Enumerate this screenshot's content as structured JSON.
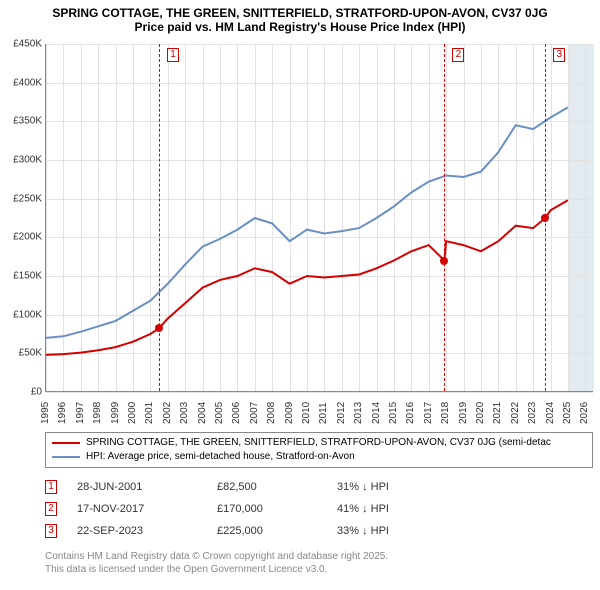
{
  "title": {
    "line1": "SPRING COTTAGE, THE GREEN, SNITTERFIELD, STRATFORD-UPON-AVON, CV37 0JG",
    "line2": "Price paid vs. HM Land Registry's House Price Index (HPI)",
    "fontsize": 12,
    "fontweight": "bold",
    "color": "#000000"
  },
  "chart": {
    "type": "line",
    "background_color": "#ffffff",
    "shaded_future_band_color": "#e3eaf0",
    "grid_color": "#e2e2e2",
    "axis_color": "#888888",
    "xlim": [
      1995,
      2026.5
    ],
    "ylim": [
      0,
      450000
    ],
    "ytick_step": 50000,
    "y_ticks": [
      {
        "v": 0,
        "label": "£0"
      },
      {
        "v": 50000,
        "label": "£50K"
      },
      {
        "v": 100000,
        "label": "£100K"
      },
      {
        "v": 150000,
        "label": "£150K"
      },
      {
        "v": 200000,
        "label": "£200K"
      },
      {
        "v": 250000,
        "label": "£250K"
      },
      {
        "v": 300000,
        "label": "£300K"
      },
      {
        "v": 350000,
        "label": "£350K"
      },
      {
        "v": 400000,
        "label": "£400K"
      },
      {
        "v": 450000,
        "label": "£450K"
      }
    ],
    "x_ticks": [
      1995,
      1996,
      1997,
      1998,
      1999,
      2000,
      2001,
      2002,
      2003,
      2004,
      2005,
      2006,
      2007,
      2008,
      2009,
      2010,
      2011,
      2012,
      2013,
      2014,
      2015,
      2016,
      2017,
      2018,
      2019,
      2020,
      2021,
      2022,
      2023,
      2024,
      2025,
      2026
    ],
    "tick_fontsize": 10,
    "tick_color": "#333333"
  },
  "series": {
    "property": {
      "label": "SPRING COTTAGE, THE GREEN, SNITTERFIELD, STRATFORD-UPON-AVON, CV37 0JG (semi-detac",
      "color": "#d40000",
      "line_width": 2,
      "data": [
        [
          1995,
          48000
        ],
        [
          1996,
          49000
        ],
        [
          1997,
          51000
        ],
        [
          1998,
          54000
        ],
        [
          1999,
          58000
        ],
        [
          2000,
          65000
        ],
        [
          2001,
          75000
        ],
        [
          2001.5,
          82500
        ],
        [
          2002,
          95000
        ],
        [
          2003,
          115000
        ],
        [
          2004,
          135000
        ],
        [
          2005,
          145000
        ],
        [
          2006,
          150000
        ],
        [
          2007,
          160000
        ],
        [
          2008,
          155000
        ],
        [
          2009,
          140000
        ],
        [
          2010,
          150000
        ],
        [
          2011,
          148000
        ],
        [
          2012,
          150000
        ],
        [
          2013,
          152000
        ],
        [
          2014,
          160000
        ],
        [
          2015,
          170000
        ],
        [
          2016,
          182000
        ],
        [
          2017,
          190000
        ],
        [
          2017.9,
          170000
        ],
        [
          2018,
          195000
        ],
        [
          2019,
          190000
        ],
        [
          2020,
          182000
        ],
        [
          2021,
          195000
        ],
        [
          2022,
          215000
        ],
        [
          2023,
          212000
        ],
        [
          2023.7,
          225000
        ],
        [
          2024,
          235000
        ],
        [
          2025,
          248000
        ]
      ]
    },
    "hpi": {
      "label": "HPI: Average price, semi-detached house, Stratford-on-Avon",
      "color": "#6a8fc5",
      "line_width": 2,
      "data": [
        [
          1995,
          70000
        ],
        [
          1996,
          72000
        ],
        [
          1997,
          78000
        ],
        [
          1998,
          85000
        ],
        [
          1999,
          92000
        ],
        [
          2000,
          105000
        ],
        [
          2001,
          118000
        ],
        [
          2002,
          140000
        ],
        [
          2003,
          165000
        ],
        [
          2004,
          188000
        ],
        [
          2005,
          198000
        ],
        [
          2006,
          210000
        ],
        [
          2007,
          225000
        ],
        [
          2008,
          218000
        ],
        [
          2009,
          195000
        ],
        [
          2010,
          210000
        ],
        [
          2011,
          205000
        ],
        [
          2012,
          208000
        ],
        [
          2013,
          212000
        ],
        [
          2014,
          225000
        ],
        [
          2015,
          240000
        ],
        [
          2016,
          258000
        ],
        [
          2017,
          272000
        ],
        [
          2018,
          280000
        ],
        [
          2019,
          278000
        ],
        [
          2020,
          285000
        ],
        [
          2021,
          310000
        ],
        [
          2022,
          345000
        ],
        [
          2023,
          340000
        ],
        [
          2024,
          355000
        ],
        [
          2025,
          368000
        ]
      ]
    }
  },
  "markers": [
    {
      "n": "1",
      "x": 2001.5,
      "y": 82500,
      "badge_offset": 8
    },
    {
      "n": "2",
      "x": 2017.9,
      "y": 170000,
      "badge_offset": 8
    },
    {
      "n": "3",
      "x": 2023.7,
      "y": 225000,
      "badge_offset": 8
    }
  ],
  "shaded_future_band": {
    "from": 2025,
    "to": 2026.5
  },
  "legend": {
    "border_color": "#888888",
    "fontsize": 10,
    "items": [
      {
        "color": "#d40000",
        "label_key": "series.property.label"
      },
      {
        "color": "#6a8fc5",
        "label_key": "series.hpi.label"
      }
    ]
  },
  "sales": [
    {
      "n": "1",
      "date": "28-JUN-2001",
      "price": "£82,500",
      "diff": "31% ↓ HPI"
    },
    {
      "n": "2",
      "date": "17-NOV-2017",
      "price": "£170,000",
      "diff": "41% ↓ HPI"
    },
    {
      "n": "3",
      "date": "22-SEP-2023",
      "price": "£225,000",
      "diff": "33% ↓ HPI"
    }
  ],
  "footer": {
    "line1": "Contains HM Land Registry data © Crown copyright and database right 2025.",
    "line2": "This data is licensed under the Open Government Licence v3.0.",
    "color": "#888888",
    "fontsize": 10
  }
}
